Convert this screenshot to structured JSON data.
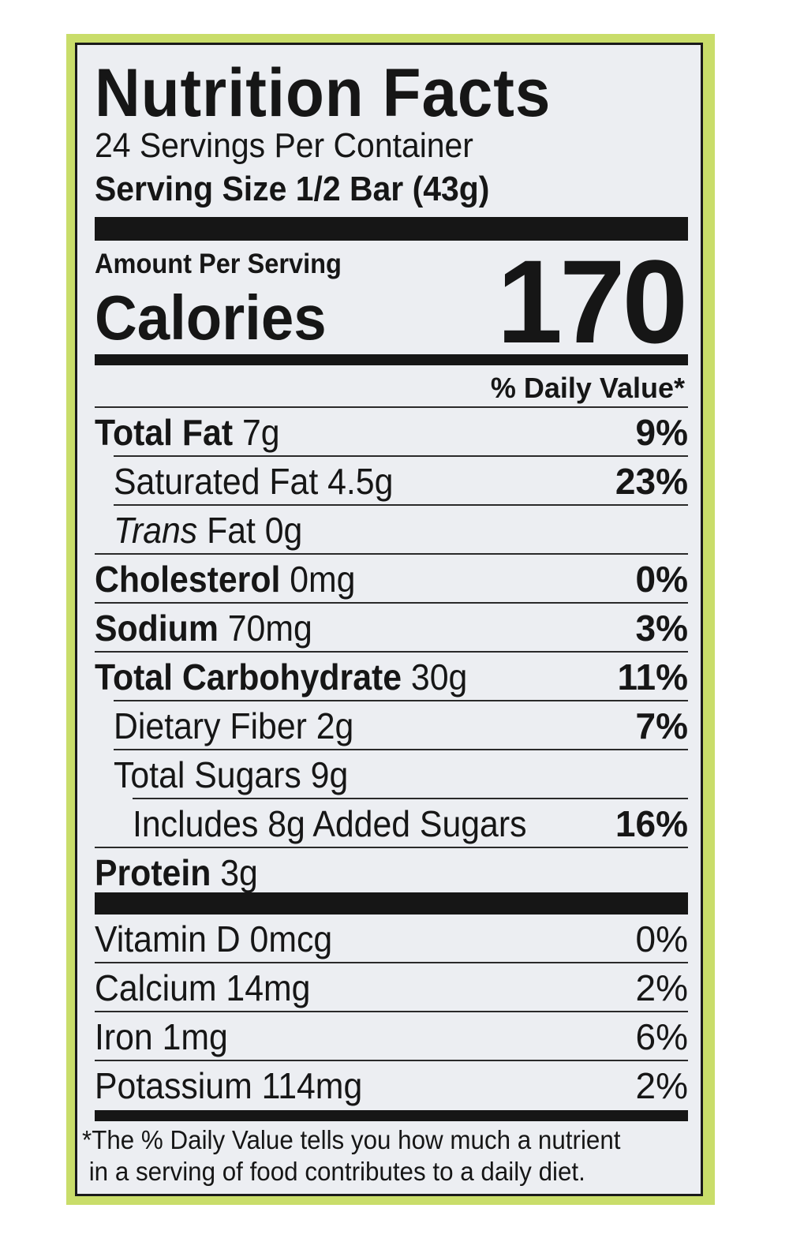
{
  "title": "Nutrition Facts",
  "servings_per_container": "24 Servings Per Container",
  "serving_size": "Serving Size 1/2 Bar (43g)",
  "amount_per_serving": "Amount Per Serving",
  "calories_label": "Calories",
  "calories_value": "170",
  "daily_value_header": "% Daily Value*",
  "nutrients": [
    {
      "name": "Total Fat",
      "amount": " 7g",
      "dv": "9%"
    },
    {
      "name": "Saturated Fat 4.5g",
      "dv": "23%"
    },
    {
      "name_italic": "Trans",
      "name_rest": " Fat 0g"
    },
    {
      "name": "Cholesterol",
      "amount": " 0mg",
      "dv": "0%"
    },
    {
      "name": "Sodium",
      "amount": " 70mg",
      "dv": "3%"
    },
    {
      "name": "Total Carbohydrate",
      "amount": " 30g",
      "dv": "11%"
    },
    {
      "name": "Dietary Fiber 2g",
      "dv": "7%"
    },
    {
      "name": "Total Sugars 9g"
    },
    {
      "name": "Includes 8g Added Sugars",
      "dv": "16%"
    },
    {
      "name": "Protein",
      "amount": " 3g"
    }
  ],
  "vitamins": [
    {
      "name": "Vitamin D 0mcg",
      "dv": "0%"
    },
    {
      "name": "Calcium 14mg",
      "dv": "2%"
    },
    {
      "name": "Iron 1mg",
      "dv": "6%"
    },
    {
      "name": "Potassium 114mg",
      "dv": "2%"
    }
  ],
  "footnote_line1": "*The % Daily Value tells you how much a nutrient",
  "footnote_line2": " in a serving of food contributes to a daily diet."
}
